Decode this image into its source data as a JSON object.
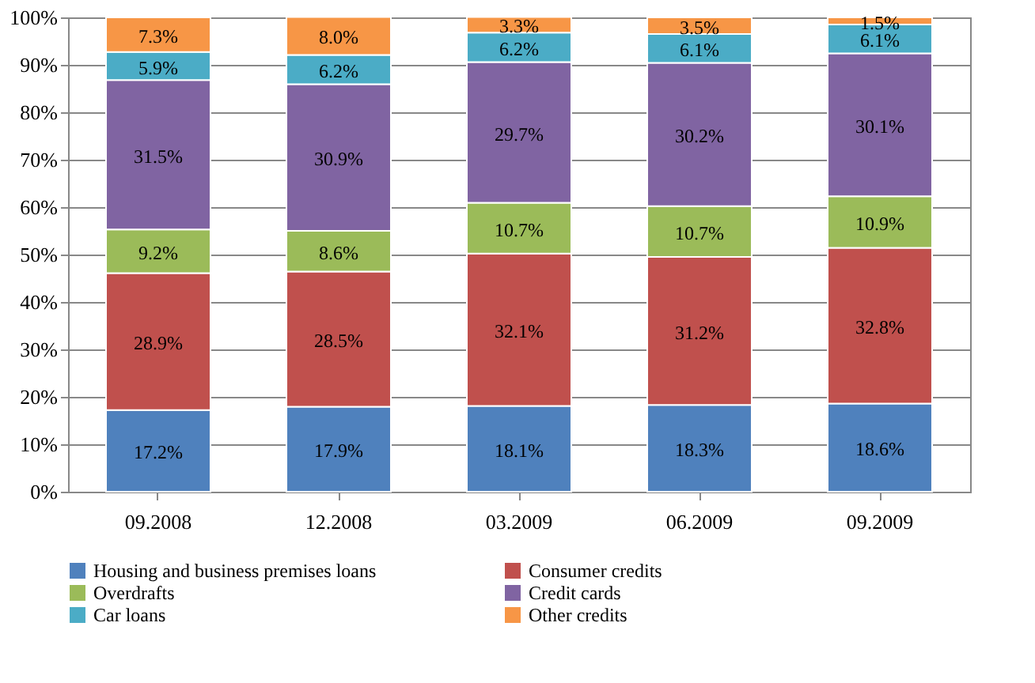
{
  "chart_data": {
    "type": "bar",
    "stacked": true,
    "grid": "y",
    "legend": "bottom",
    "categories": [
      "09.2008",
      "12.2008",
      "03.2009",
      "06.2009",
      "09.2009"
    ],
    "ylim": [
      0,
      100
    ],
    "yticks": [
      {
        "value": 0,
        "label": "0%"
      },
      {
        "value": 10,
        "label": "10%"
      },
      {
        "value": 20,
        "label": "20%"
      },
      {
        "value": 30,
        "label": "30%"
      },
      {
        "value": 40,
        "label": "40%"
      },
      {
        "value": 50,
        "label": "50%"
      },
      {
        "value": 60,
        "label": "60%"
      },
      {
        "value": 70,
        "label": "70%"
      },
      {
        "value": 80,
        "label": "80%"
      },
      {
        "value": 90,
        "label": "90%"
      },
      {
        "value": 100,
        "label": "100%"
      }
    ],
    "series": [
      {
        "name": "Housing and business premises loans",
        "color": "#4f81bd",
        "values": [
          17.2,
          17.9,
          18.1,
          18.3,
          18.6
        ],
        "value_labels": [
          "17.2%",
          "17.9%",
          "18.1%",
          "18.3%",
          "18.6%"
        ]
      },
      {
        "name": "Consumer credits",
        "color": "#c0504d",
        "values": [
          28.9,
          28.5,
          32.1,
          31.2,
          32.8
        ],
        "value_labels": [
          "28.9%",
          "28.5%",
          "32.1%",
          "31.2%",
          "32.8%"
        ]
      },
      {
        "name": "Overdrafts",
        "color": "#9bbb59",
        "values": [
          9.2,
          8.6,
          10.7,
          10.7,
          10.9
        ],
        "value_labels": [
          "9.2%",
          "8.6%",
          "10.7%",
          "10.7%",
          "10.9%"
        ]
      },
      {
        "name": "Credit cards",
        "color": "#8064a2",
        "values": [
          31.5,
          30.9,
          29.7,
          30.2,
          30.1
        ],
        "value_labels": [
          "31.5%",
          "30.9%",
          "29.7%",
          "30.2%",
          "30.1%"
        ]
      },
      {
        "name": "Car loans",
        "color": "#4bacc6",
        "values": [
          5.9,
          6.2,
          6.2,
          6.1,
          6.1
        ],
        "value_labels": [
          "5.9%",
          "6.2%",
          "6.2%",
          "6.1%",
          "6.1%"
        ]
      },
      {
        "name": "Other credits",
        "color": "#f79646",
        "values": [
          7.3,
          8.0,
          3.3,
          3.5,
          1.5
        ],
        "value_labels": [
          "7.3%",
          "8.0%",
          "3.3%",
          "3.5%",
          "1.5%"
        ]
      }
    ]
  }
}
